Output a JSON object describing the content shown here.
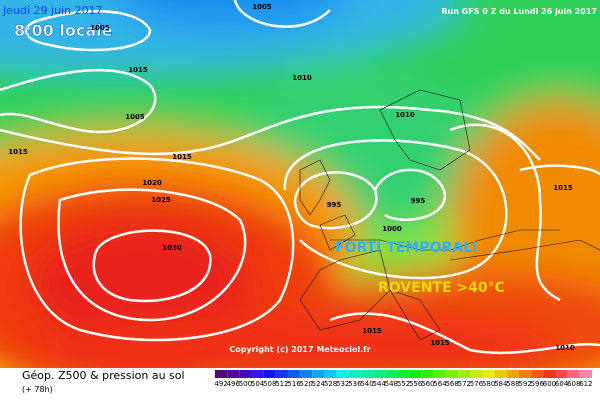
{
  "header": {
    "date": "Jeudi 29 juin 2017",
    "local_time": "8:00 locale",
    "run": "Run GFS 0 Z du Lundi 26 juin 2017"
  },
  "isobar_labels": [
    "1005",
    "1005",
    "1015",
    "1010",
    "1005",
    "1015",
    "1010",
    "1015",
    "1020",
    "1025",
    "995",
    "995",
    "1030",
    "1000",
    "1015",
    "1015",
    "1015",
    "1010"
  ],
  "annotations": [
    "FORTI TEMPORALI",
    "ROVENTE >40°C"
  ],
  "copyright": "Copyright (c) 2017 Meteociel.fr",
  "footer": {
    "title": "Géop. Z500 & pression au sol",
    "lead": "(+ 78h)"
  },
  "scale_labels": [
    "492",
    "496",
    "500",
    "504",
    "508",
    "512",
    "516",
    "520",
    "524",
    "528",
    "532",
    "536",
    "540",
    "544",
    "548",
    "552",
    "556",
    "560",
    "564",
    "568",
    "572",
    "576",
    "580",
    "584",
    "588",
    "592",
    "596",
    "600",
    "604",
    "608",
    "612"
  ]
}
